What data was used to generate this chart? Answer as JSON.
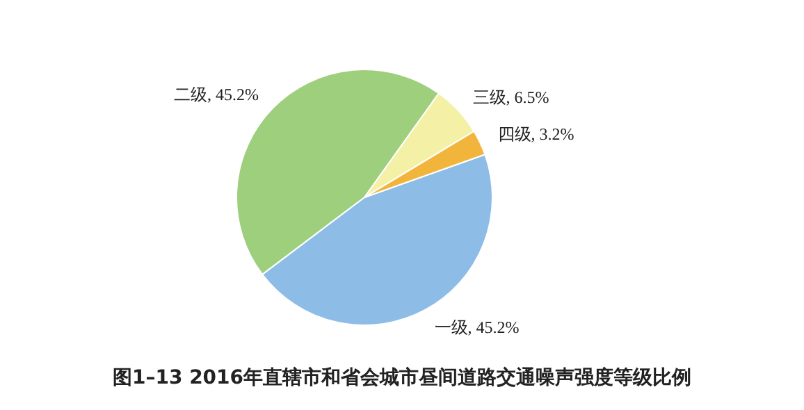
{
  "chart_data": {
    "type": "pie",
    "title": "图1–13  2016年直辖市和省会城市昼间道路交通噪声强度等级比例",
    "categories": [
      "一级",
      "二级",
      "三级",
      "四级"
    ],
    "values": [
      45.2,
      45.2,
      6.5,
      3.2
    ],
    "colors": [
      "#8dbde6",
      "#9ecf7c",
      "#f4f1a6",
      "#f2b53c"
    ],
    "value_labels": [
      ", 45.2%",
      ", 45.2%",
      ", 6.5%",
      ", 3.2%"
    ]
  }
}
